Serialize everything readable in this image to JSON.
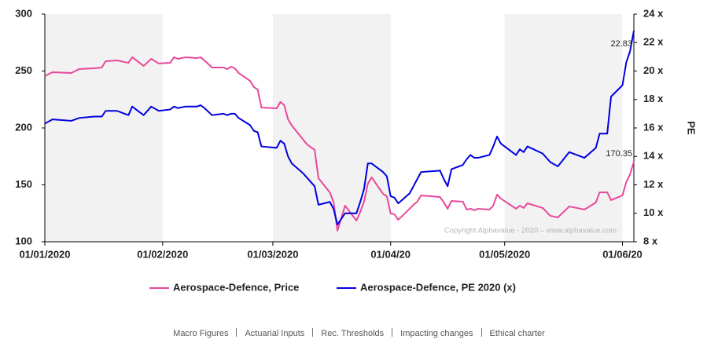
{
  "chart_data": {
    "type": "line",
    "watermark": "Copyright Alphavalue - 2020 – www.alphavalue.com",
    "y2_label": "PE",
    "x": [
      "2020-01-01",
      "2020-01-03",
      "2020-01-08",
      "2020-01-10",
      "2020-01-14",
      "2020-01-16",
      "2020-01-17",
      "2020-01-20",
      "2020-01-22",
      "2020-01-23",
      "2020-01-24",
      "2020-01-27",
      "2020-01-29",
      "2020-01-31",
      "2020-02-03",
      "2020-02-04",
      "2020-02-05",
      "2020-02-07",
      "2020-02-10",
      "2020-02-11",
      "2020-02-12",
      "2020-02-14",
      "2020-02-17",
      "2020-02-18",
      "2020-02-19",
      "2020-02-20",
      "2020-02-21",
      "2020-02-24",
      "2020-02-25",
      "2020-02-26",
      "2020-02-27",
      "2020-03-02",
      "2020-03-03",
      "2020-03-04",
      "2020-03-05",
      "2020-03-06",
      "2020-03-09",
      "2020-03-10",
      "2020-03-12",
      "2020-03-13",
      "2020-03-16",
      "2020-03-17",
      "2020-03-18",
      "2020-03-20",
      "2020-03-23",
      "2020-03-24",
      "2020-03-25",
      "2020-03-26",
      "2020-03-27",
      "2020-03-30",
      "2020-03-31",
      "2020-04-01",
      "2020-04-02",
      "2020-04-03",
      "2020-04-06",
      "2020-04-07",
      "2020-04-08",
      "2020-04-09",
      "2020-04-14",
      "2020-04-15",
      "2020-04-16",
      "2020-04-17",
      "2020-04-20",
      "2020-04-21",
      "2020-04-22",
      "2020-04-23",
      "2020-04-24",
      "2020-04-27",
      "2020-04-28",
      "2020-04-29",
      "2020-04-30",
      "2020-05-04",
      "2020-05-05",
      "2020-05-06",
      "2020-05-07",
      "2020-05-11",
      "2020-05-13",
      "2020-05-15",
      "2020-05-18",
      "2020-05-20",
      "2020-05-22",
      "2020-05-25",
      "2020-05-26",
      "2020-05-28",
      "2020-05-29",
      "2020-06-01",
      "2020-06-02",
      "2020-06-03",
      "2020-06-04"
    ],
    "series": [
      {
        "name": "Aerospace-Defence, Price",
        "color": "#e8489a",
        "values": [
          245.5,
          249.0,
          248.3,
          251.7,
          252.4,
          253.1,
          258.6,
          259.3,
          257.9,
          257.2,
          262.1,
          254.5,
          260.7,
          256.6,
          257.2,
          262.1,
          260.7,
          262.1,
          261.4,
          262.1,
          259.3,
          253.1,
          253.1,
          251.7,
          253.8,
          252.4,
          248.3,
          241.4,
          235.9,
          233.8,
          217.9,
          217.2,
          222.8,
          220.0,
          207.6,
          202.1,
          189.7,
          185.5,
          180.7,
          155.9,
          143.4,
          134.5,
          109.7,
          131.7,
          118.6,
          126.2,
          135.2,
          151.0,
          156.6,
          142.1,
          140.0,
          124.8,
          124.1,
          119.3,
          129.0,
          132.4,
          135.2,
          140.7,
          139.3,
          134.5,
          129.0,
          135.9,
          135.2,
          128.3,
          129.0,
          127.6,
          129.0,
          128.3,
          131.7,
          141.4,
          137.9,
          129.0,
          131.7,
          129.7,
          133.8,
          129.7,
          122.8,
          121.4,
          131.0,
          129.7,
          128.3,
          134.5,
          143.4,
          143.4,
          136.6,
          140.7,
          152.4,
          159.3,
          170.35
        ]
      },
      {
        "name": "Aerospace-Defence, PE 2020 (x)",
        "color": "#0000e0",
        "axis": "y2",
        "values": [
          16.3,
          16.6,
          16.5,
          16.7,
          16.8,
          16.8,
          17.2,
          17.2,
          17.0,
          16.9,
          17.5,
          16.9,
          17.5,
          17.2,
          17.3,
          17.5,
          17.4,
          17.5,
          17.5,
          17.6,
          17.4,
          16.9,
          17.0,
          16.9,
          17.0,
          17.0,
          16.7,
          16.2,
          15.8,
          15.7,
          14.7,
          14.6,
          15.1,
          14.9,
          14.0,
          13.5,
          12.8,
          12.5,
          11.9,
          10.6,
          10.8,
          10.3,
          9.2,
          10.0,
          10.0,
          10.8,
          11.7,
          13.5,
          13.5,
          12.9,
          12.6,
          11.2,
          11.1,
          10.7,
          11.4,
          11.9,
          12.4,
          12.9,
          13.0,
          12.4,
          11.9,
          13.1,
          13.4,
          13.8,
          14.1,
          13.9,
          13.9,
          14.1,
          14.7,
          15.4,
          14.9,
          14.1,
          14.5,
          14.3,
          14.7,
          14.2,
          13.6,
          13.3,
          14.3,
          14.1,
          13.9,
          14.6,
          15.6,
          15.6,
          18.2,
          19.0,
          20.6,
          21.4,
          22.83
        ]
      }
    ],
    "xlim": [
      "2020-01-01",
      "2020-06-04"
    ],
    "xticks": [
      {
        "value": "2020-01-01",
        "label": "01/01/2020"
      },
      {
        "value": "2020-02-01",
        "label": "01/02/2020"
      },
      {
        "value": "2020-03-01",
        "label": "01/03/2020"
      },
      {
        "value": "2020-04-01",
        "label": "01/04/20"
      },
      {
        "value": "2020-05-01",
        "label": "01/05/2020"
      },
      {
        "value": "2020-06-01",
        "label": "01/06/20"
      }
    ],
    "ylim": [
      100,
      300
    ],
    "yticks": [
      100,
      150,
      200,
      250,
      300
    ],
    "y2lim": [
      8,
      24
    ],
    "y2ticks": [
      {
        "value": 8,
        "label": "8 x"
      },
      {
        "value": 10,
        "label": "10 x"
      },
      {
        "value": 12,
        "label": "12 x"
      },
      {
        "value": 14,
        "label": "14 x"
      },
      {
        "value": 16,
        "label": "16 x"
      },
      {
        "value": 18,
        "label": "18 x"
      },
      {
        "value": 20,
        "label": "20 x"
      },
      {
        "value": 22,
        "label": "22 x"
      },
      {
        "value": 24,
        "label": "24 x"
      }
    ],
    "month_bands": true
  },
  "footer_links": [
    "Macro Figures",
    "Actuarial Inputs",
    "Rec. Thresholds",
    "Impacting changes",
    "Ethical charter"
  ]
}
